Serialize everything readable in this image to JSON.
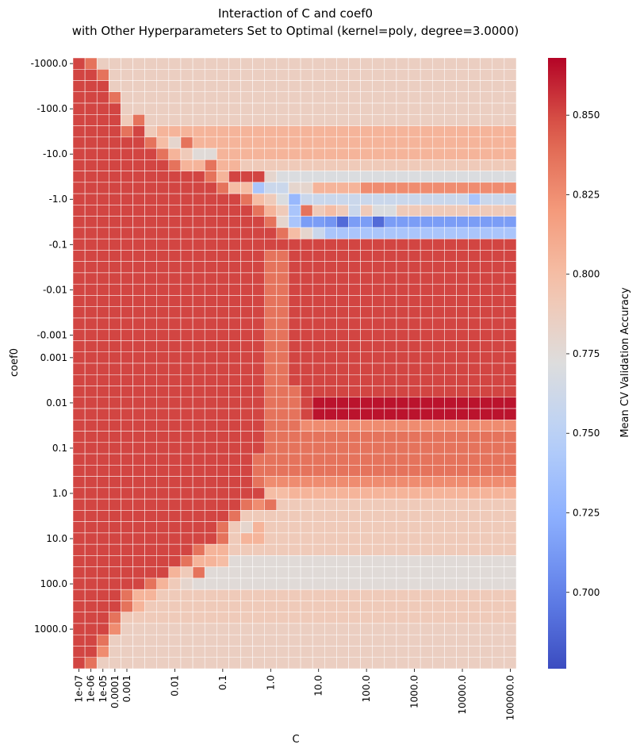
{
  "chart_data": {
    "type": "heatmap",
    "title": "Interaction of C and coef0",
    "subtitle": "with Other Hyperparameters Set to Optimal (kernel=poly, degree=3.0000)",
    "xlabel": "C",
    "ylabel": "coef0",
    "colorbar_label": "Mean CV Validation Accuracy",
    "colormap": "coolwarm",
    "vmin": 0.676,
    "vmax": 0.868,
    "colorbar_ticks": [
      "0.700",
      "0.725",
      "0.750",
      "0.775",
      "0.800",
      "0.825",
      "0.850"
    ],
    "x_tick_labels": [
      {
        "col": 0,
        "label": "1e-07"
      },
      {
        "col": 1,
        "label": "1e-06"
      },
      {
        "col": 2,
        "label": "1e-05"
      },
      {
        "col": 3,
        "label": "0.0001"
      },
      {
        "col": 4,
        "label": "0.001"
      },
      {
        "col": 8,
        "label": "0.01"
      },
      {
        "col": 12,
        "label": "0.1"
      },
      {
        "col": 16,
        "label": "1.0"
      },
      {
        "col": 20,
        "label": "10.0"
      },
      {
        "col": 24,
        "label": "100.0"
      },
      {
        "col": 28,
        "label": "1000.0"
      },
      {
        "col": 32,
        "label": "10000.0"
      },
      {
        "col": 36,
        "label": "100000.0"
      }
    ],
    "y_tick_labels": [
      {
        "row": 0,
        "label": "-1000.0"
      },
      {
        "row": 4,
        "label": "-100.0"
      },
      {
        "row": 8,
        "label": "-10.0"
      },
      {
        "row": 12,
        "label": "-1.0"
      },
      {
        "row": 16,
        "label": "-0.1"
      },
      {
        "row": 20,
        "label": "-0.01"
      },
      {
        "row": 24,
        "label": "-0.001"
      },
      {
        "row": 26,
        "label": "0.001"
      },
      {
        "row": 30,
        "label": "0.01"
      },
      {
        "row": 34,
        "label": "0.1"
      },
      {
        "row": 38,
        "label": "1.0"
      },
      {
        "row": 42,
        "label": "10.0"
      },
      {
        "row": 46,
        "label": "100.0"
      },
      {
        "row": 50,
        "label": "1000.0"
      }
    ],
    "rows": [
      "0.851 0.836 0.786 0.786 0.786 0.786 0.786 0.786 0.786 0.786 0.786 0.786 0.786 0.786 0.786 0.786 0.786 0.786 0.786 0.786 0.786 0.786 0.786 0.786 0.786 0.786 0.786 0.786 0.786 0.786 0.786 0.786 0.786 0.786 0.786 0.786 0.786",
      "0.851 0.851 0.836 0.786 0.786 0.786 0.786 0.786 0.786 0.786 0.786 0.786 0.786 0.786 0.786 0.786 0.786 0.786 0.786 0.786 0.786 0.786 0.786 0.786 0.786 0.786 0.786 0.786 0.786 0.786 0.786 0.786 0.786 0.786 0.786 0.786 0.786",
      "0.851 0.851 0.851 0.786 0.786 0.786 0.786 0.786 0.786 0.786 0.786 0.786 0.786 0.786 0.786 0.786 0.786 0.786 0.786 0.786 0.786 0.786 0.786 0.786 0.786 0.786 0.786 0.786 0.786 0.786 0.786 0.786 0.786 0.786 0.786 0.786 0.786",
      "0.851 0.851 0.851 0.836 0.786 0.786 0.786 0.786 0.786 0.786 0.786 0.786 0.786 0.786 0.786 0.786 0.786 0.786 0.786 0.786 0.786 0.786 0.786 0.786 0.786 0.786 0.786 0.786 0.786 0.786 0.786 0.786 0.786 0.786 0.786 0.786 0.786",
      "0.851 0.851 0.851 0.851 0.786 0.786 0.786 0.786 0.786 0.786 0.786 0.786 0.786 0.786 0.786 0.786 0.786 0.786 0.786 0.786 0.786 0.786 0.786 0.786 0.786 0.786 0.786 0.786 0.786 0.786 0.786 0.786 0.786 0.786 0.786 0.786 0.786",
      "0.851 0.851 0.851 0.851 0.790 0.836 0.786 0.786 0.786 0.786 0.786 0.786 0.786 0.786 0.786 0.786 0.786 0.786 0.786 0.786 0.786 0.786 0.786 0.786 0.786 0.786 0.786 0.786 0.786 0.786 0.786 0.786 0.786 0.786 0.786 0.786 0.786",
      "0.851 0.851 0.851 0.851 0.836 0.851 0.790 0.805 0.805 0.805 0.805 0.805 0.805 0.805 0.805 0.805 0.805 0.805 0.805 0.805 0.805 0.805 0.805 0.805 0.805 0.805 0.805 0.805 0.805 0.805 0.805 0.805 0.805 0.805 0.805 0.805 0.805",
      "0.851 0.851 0.851 0.851 0.851 0.851 0.836 0.800 0.780 0.836 0.805 0.805 0.805 0.805 0.805 0.805 0.805 0.805 0.805 0.805 0.805 0.805 0.805 0.805 0.805 0.805 0.805 0.805 0.805 0.805 0.805 0.805 0.805 0.805 0.805 0.805 0.805",
      "0.851 0.851 0.851 0.851 0.851 0.851 0.851 0.836 0.805 0.790 0.775 0.775 0.805 0.805 0.805 0.805 0.805 0.805 0.805 0.805 0.805 0.805 0.805 0.805 0.805 0.805 0.805 0.805 0.805 0.805 0.805 0.805 0.805 0.805 0.805 0.805 0.805",
      "0.851 0.851 0.851 0.851 0.851 0.851 0.851 0.851 0.836 0.805 0.805 0.836 0.805 0.805 0.790 0.790 0.790 0.790 0.790 0.790 0.790 0.790 0.790 0.790 0.790 0.790 0.790 0.790 0.790 0.790 0.790 0.790 0.790 0.790 0.790 0.790 0.790",
      "0.851 0.851 0.851 0.851 0.851 0.851 0.851 0.851 0.851 0.851 0.851 0.836 0.805 0.851 0.851 0.851 0.780 0.770 0.770 0.770 0.770 0.770 0.770 0.770 0.770 0.770 0.770 0.770 0.770 0.770 0.770 0.770 0.770 0.770 0.770 0.770 0.770",
      "0.851 0.851 0.851 0.851 0.851 0.851 0.851 0.851 0.851 0.851 0.851 0.851 0.836 0.800 0.800 0.740 0.760 0.760 0.780 0.780 0.805 0.805 0.805 0.805 0.826 0.826 0.826 0.826 0.826 0.826 0.826 0.826 0.826 0.826 0.826 0.826 0.826",
      "0.851 0.851 0.851 0.851 0.851 0.851 0.851 0.851 0.851 0.851 0.851 0.851 0.851 0.851 0.836 0.800 0.790 0.770 0.730 0.760 0.760 0.760 0.760 0.760 0.760 0.760 0.760 0.760 0.760 0.760 0.760 0.760 0.760 0.740 0.760 0.760 0.760",
      "0.851 0.851 0.851 0.851 0.851 0.851 0.851 0.851 0.851 0.851 0.851 0.851 0.851 0.851 0.851 0.836 0.805 0.790 0.740 0.836 0.790 0.800 0.790 0.760 0.790 0.770 0.770 0.790 0.790 0.790 0.790 0.790 0.790 0.790 0.790 0.790 0.790",
      "0.851 0.851 0.851 0.851 0.851 0.851 0.851 0.851 0.851 0.851 0.851 0.851 0.851 0.851 0.851 0.851 0.836 0.780 0.740 0.714 0.714 0.710 0.690 0.714 0.714 0.690 0.714 0.714 0.714 0.714 0.714 0.714 0.714 0.714 0.714 0.714 0.714",
      "0.851 0.851 0.851 0.851 0.851 0.851 0.851 0.851 0.851 0.851 0.851 0.851 0.851 0.851 0.851 0.851 0.851 0.836 0.800 0.780 0.760 0.740 0.740 0.740 0.740 0.740 0.740 0.740 0.740 0.740 0.740 0.740 0.740 0.740 0.740 0.740 0.740",
      "0.851 0.851 0.851 0.851 0.851 0.851 0.851 0.851 0.851 0.851 0.851 0.851 0.851 0.851 0.851 0.851 0.851 0.851 0.851 0.851 0.851 0.851 0.851 0.851 0.851 0.851 0.851 0.851 0.851 0.851 0.851 0.851 0.851 0.851 0.851 0.851 0.851",
      "0.851 0.851 0.851 0.851 0.851 0.851 0.851 0.851 0.851 0.851 0.851 0.851 0.851 0.851 0.851 0.851 0.836 0.836 0.851 0.851 0.851 0.851 0.851 0.851 0.851 0.851 0.851 0.851 0.851 0.851 0.851 0.851 0.851 0.851 0.851 0.851 0.851",
      "0.851 0.851 0.851 0.851 0.851 0.851 0.851 0.851 0.851 0.851 0.851 0.851 0.851 0.851 0.851 0.851 0.836 0.836 0.851 0.851 0.851 0.851 0.851 0.851 0.851 0.851 0.851 0.851 0.851 0.851 0.851 0.851 0.851 0.851 0.851 0.851 0.851",
      "0.851 0.851 0.851 0.851 0.851 0.851 0.851 0.851 0.851 0.851 0.851 0.851 0.851 0.851 0.851 0.851 0.836 0.836 0.851 0.851 0.851 0.851 0.851 0.851 0.851 0.851 0.851 0.851 0.851 0.851 0.851 0.851 0.851 0.851 0.851 0.851 0.851",
      "0.851 0.851 0.851 0.851 0.851 0.851 0.851 0.851 0.851 0.851 0.851 0.851 0.851 0.851 0.851 0.851 0.836 0.836 0.851 0.851 0.851 0.851 0.851 0.851 0.851 0.851 0.851 0.851 0.851 0.851 0.851 0.851 0.851 0.851 0.851 0.851 0.851",
      "0.851 0.851 0.851 0.851 0.851 0.851 0.851 0.851 0.851 0.851 0.851 0.851 0.851 0.851 0.851 0.851 0.836 0.836 0.851 0.851 0.851 0.851 0.851 0.851 0.851 0.851 0.851 0.851 0.851 0.851 0.851 0.851 0.851 0.851 0.851 0.851 0.851",
      "0.851 0.851 0.851 0.851 0.851 0.851 0.851 0.851 0.851 0.851 0.851 0.851 0.851 0.851 0.851 0.851 0.836 0.836 0.851 0.851 0.851 0.851 0.851 0.851 0.851 0.851 0.851 0.851 0.851 0.851 0.851 0.851 0.851 0.851 0.851 0.851 0.851",
      "0.851 0.851 0.851 0.851 0.851 0.851 0.851 0.851 0.851 0.851 0.851 0.851 0.851 0.851 0.851 0.851 0.836 0.836 0.851 0.851 0.851 0.851 0.851 0.851 0.851 0.851 0.851 0.851 0.851 0.851 0.851 0.851 0.851 0.851 0.851 0.851 0.851",
      "0.851 0.851 0.851 0.851 0.851 0.851 0.851 0.851 0.851 0.851 0.851 0.851 0.851 0.851 0.851 0.851 0.836 0.836 0.851 0.851 0.851 0.851 0.851 0.851 0.851 0.851 0.851 0.851 0.851 0.851 0.851 0.851 0.851 0.851 0.851 0.851 0.851",
      "0.851 0.851 0.851 0.851 0.851 0.851 0.851 0.851 0.851 0.851 0.851 0.851 0.851 0.851 0.851 0.851 0.836 0.836 0.851 0.851 0.851 0.851 0.851 0.851 0.851 0.851 0.851 0.851 0.851 0.851 0.851 0.851 0.851 0.851 0.851 0.851 0.851",
      "0.851 0.851 0.851 0.851 0.851 0.851 0.851 0.851 0.851 0.851 0.851 0.851 0.851 0.851 0.851 0.851 0.836 0.836 0.851 0.851 0.851 0.851 0.851 0.851 0.851 0.851 0.851 0.851 0.851 0.851 0.851 0.851 0.851 0.851 0.851 0.851 0.851",
      "0.851 0.851 0.851 0.851 0.851 0.851 0.851 0.851 0.851 0.851 0.851 0.851 0.851 0.851 0.851 0.851 0.836 0.836 0.851 0.851 0.851 0.851 0.851 0.851 0.851 0.851 0.851 0.851 0.851 0.851 0.851 0.851 0.851 0.851 0.851 0.851 0.851",
      "0.851 0.851 0.851 0.851 0.851 0.851 0.851 0.851 0.851 0.851 0.851 0.851 0.851 0.851 0.851 0.851 0.836 0.836 0.851 0.851 0.851 0.851 0.851 0.851 0.851 0.851 0.851 0.851 0.851 0.851 0.851 0.851 0.851 0.851 0.851 0.851 0.851",
      "0.851 0.851 0.851 0.851 0.851 0.851 0.851 0.851 0.851 0.851 0.851 0.851 0.851 0.851 0.851 0.851 0.836 0.836 0.836 0.851 0.851 0.851 0.851 0.851 0.851 0.851 0.851 0.851 0.851 0.851 0.851 0.851 0.851 0.851 0.851 0.851 0.851",
      "0.851 0.851 0.851 0.851 0.851 0.851 0.851 0.851 0.851 0.851 0.851 0.851 0.851 0.851 0.851 0.851 0.836 0.836 0.836 0.851 0.864 0.864 0.864 0.864 0.864 0.864 0.864 0.864 0.864 0.864 0.864 0.864 0.864 0.864 0.864 0.864 0.864",
      "0.851 0.851 0.851 0.851 0.851 0.851 0.851 0.851 0.851 0.851 0.851 0.851 0.851 0.851 0.851 0.851 0.836 0.836 0.836 0.851 0.864 0.864 0.864 0.864 0.864 0.864 0.864 0.864 0.864 0.864 0.864 0.864 0.864 0.864 0.864 0.864 0.864",
      "0.851 0.851 0.851 0.851 0.851 0.851 0.851 0.851 0.851 0.851 0.851 0.851 0.851 0.851 0.851 0.851 0.836 0.836 0.836 0.826 0.826 0.826 0.826 0.826 0.826 0.826 0.826 0.826 0.826 0.826 0.826 0.826 0.826 0.826 0.826 0.826 0.826",
      "0.851 0.851 0.851 0.851 0.851 0.851 0.851 0.851 0.851 0.851 0.851 0.851 0.851 0.851 0.851 0.851 0.836 0.836 0.836 0.836 0.836 0.836 0.836 0.836 0.836 0.836 0.836 0.836 0.836 0.836 0.836 0.836 0.836 0.836 0.836 0.836 0.836",
      "0.851 0.851 0.851 0.851 0.851 0.851 0.851 0.851 0.851 0.851 0.851 0.851 0.851 0.851 0.851 0.851 0.836 0.836 0.836 0.836 0.836 0.836 0.836 0.836 0.836 0.836 0.836 0.836 0.836 0.836 0.836 0.836 0.836 0.836 0.836 0.836 0.836",
      "0.851 0.851 0.851 0.851 0.851 0.851 0.851 0.851 0.851 0.851 0.851 0.851 0.851 0.851 0.851 0.836 0.836 0.836 0.836 0.836 0.836 0.836 0.836 0.836 0.836 0.836 0.836 0.836 0.836 0.836 0.836 0.836 0.836 0.836 0.836 0.836 0.836",
      "0.851 0.851 0.851 0.851 0.851 0.851 0.851 0.851 0.851 0.851 0.851 0.851 0.851 0.851 0.851 0.836 0.836 0.836 0.836 0.836 0.836 0.836 0.836 0.836 0.836 0.836 0.836 0.836 0.836 0.836 0.836 0.836 0.836 0.836 0.836 0.836 0.836",
      "0.851 0.851 0.851 0.851 0.851 0.851 0.851 0.851 0.851 0.851 0.851 0.851 0.851 0.851 0.851 0.836 0.826 0.826 0.826 0.826 0.826 0.826 0.826 0.826 0.826 0.826 0.826 0.826 0.826 0.826 0.826 0.826 0.826 0.826 0.826 0.826 0.826",
      "0.851 0.851 0.851 0.851 0.851 0.851 0.851 0.851 0.851 0.851 0.851 0.851 0.851 0.851 0.851 0.851 0.800 0.800 0.805 0.805 0.805 0.805 0.805 0.805 0.805 0.805 0.805 0.805 0.805 0.805 0.805 0.805 0.805 0.805 0.805 0.805 0.805",
      "0.851 0.851 0.851 0.851 0.851 0.851 0.851 0.851 0.851 0.851 0.851 0.851 0.851 0.851 0.836 0.826 0.836 0.790 0.790 0.790 0.790 0.790 0.790 0.790 0.790 0.790 0.790 0.790 0.790 0.790 0.790 0.790 0.790 0.790 0.790 0.790 0.790",
      "0.851 0.851 0.851 0.851 0.851 0.851 0.851 0.851 0.851 0.851 0.851 0.851 0.851 0.836 0.790 0.790 0.790 0.790 0.790 0.790 0.790 0.790 0.790 0.790 0.790 0.790 0.790 0.790 0.790 0.790 0.790 0.790 0.790 0.790 0.790 0.790 0.790",
      "0.851 0.851 0.851 0.851 0.851 0.851 0.851 0.851 0.851 0.851 0.851 0.851 0.836 0.790 0.780 0.805 0.790 0.790 0.790 0.790 0.790 0.790 0.790 0.790 0.790 0.790 0.790 0.790 0.790 0.790 0.790 0.790 0.790 0.790 0.790 0.790 0.790",
      "0.851 0.851 0.851 0.851 0.851 0.851 0.851 0.851 0.851 0.851 0.851 0.851 0.836 0.790 0.805 0.805 0.790 0.790 0.790 0.790 0.790 0.790 0.790 0.790 0.790 0.790 0.790 0.790 0.790 0.790 0.790 0.790 0.790 0.790 0.790 0.790 0.790",
      "0.851 0.851 0.851 0.851 0.851 0.851 0.851 0.851 0.851 0.851 0.836 0.805 0.805 0.790 0.790 0.790 0.790 0.790 0.790 0.790 0.790 0.790 0.790 0.790 0.790 0.790 0.790 0.790 0.790 0.790 0.790 0.790 0.790 0.790 0.790 0.790 0.790",
      "0.851 0.851 0.851 0.851 0.851 0.851 0.851 0.851 0.851 0.836 0.805 0.805 0.800 0.775 0.775 0.775 0.775 0.775 0.775 0.775 0.775 0.775 0.775 0.775 0.775 0.775 0.775 0.775 0.775 0.775 0.775 0.775 0.775 0.775 0.775 0.775 0.775",
      "0.851 0.851 0.851 0.851 0.851 0.851 0.851 0.851 0.805 0.790 0.836 0.775 0.775 0.775 0.775 0.775 0.775 0.775 0.775 0.775 0.775 0.775 0.775 0.775 0.775 0.775 0.775 0.775 0.775 0.775 0.775 0.775 0.775 0.775 0.775 0.775 0.775",
      "0.851 0.851 0.851 0.851 0.851 0.851 0.836 0.805 0.790 0.780 0.775 0.775 0.775 0.775 0.775 0.775 0.775 0.775 0.775 0.775 0.775 0.775 0.775 0.775 0.775 0.775 0.775 0.775 0.775 0.775 0.775 0.775 0.775 0.775 0.775 0.775 0.775",
      "0.851 0.851 0.851 0.851 0.836 0.805 0.805 0.790 0.790 0.790 0.790 0.790 0.790 0.790 0.790 0.790 0.790 0.790 0.790 0.790 0.790 0.790 0.790 0.790 0.790 0.790 0.790 0.790 0.790 0.790 0.790 0.790 0.790 0.790 0.790 0.790 0.790",
      "0.851 0.851 0.851 0.851 0.836 0.805 0.790 0.790 0.790 0.790 0.790 0.790 0.790 0.790 0.790 0.790 0.790 0.790 0.790 0.790 0.790 0.790 0.790 0.790 0.790 0.790 0.790 0.790 0.790 0.790 0.790 0.790 0.790 0.790 0.790 0.790 0.790",
      "0.851 0.851 0.851 0.836 0.790 0.790 0.790 0.790 0.790 0.790 0.790 0.790 0.790 0.790 0.790 0.790 0.790 0.790 0.790 0.790 0.790 0.790 0.790 0.790 0.790 0.790 0.790 0.790 0.790 0.790 0.790 0.790 0.790 0.790 0.790 0.790 0.790",
      "0.851 0.851 0.851 0.826 0.786 0.786 0.786 0.786 0.786 0.786 0.786 0.786 0.786 0.786 0.786 0.786 0.786 0.786 0.786 0.786 0.786 0.786 0.786 0.786 0.786 0.786 0.786 0.786 0.786 0.786 0.786 0.786 0.786 0.786 0.786 0.786 0.786",
      "0.851 0.851 0.836 0.786 0.786 0.786 0.786 0.786 0.786 0.786 0.786 0.786 0.786 0.786 0.786 0.786 0.786 0.786 0.786 0.786 0.786 0.786 0.786 0.786 0.786 0.786 0.786 0.786 0.786 0.786 0.786 0.786 0.786 0.786 0.786 0.786 0.786",
      "0.851 0.851 0.826 0.786 0.786 0.786 0.786 0.786 0.786 0.786 0.786 0.786 0.786 0.786 0.786 0.786 0.786 0.786 0.786 0.786 0.786 0.786 0.786 0.786 0.786 0.786 0.786 0.786 0.786 0.786 0.786 0.786 0.786 0.786 0.786 0.786 0.786",
      "0.851 0.836 0.786 0.786 0.786 0.786 0.786 0.786 0.786 0.786 0.786 0.786 0.786 0.786 0.786 0.786 0.786 0.786 0.786 0.786 0.786 0.786 0.786 0.786 0.786 0.786 0.786 0.786 0.786 0.786 0.786 0.786 0.786 0.786 0.786 0.786 0.786"
    ]
  }
}
